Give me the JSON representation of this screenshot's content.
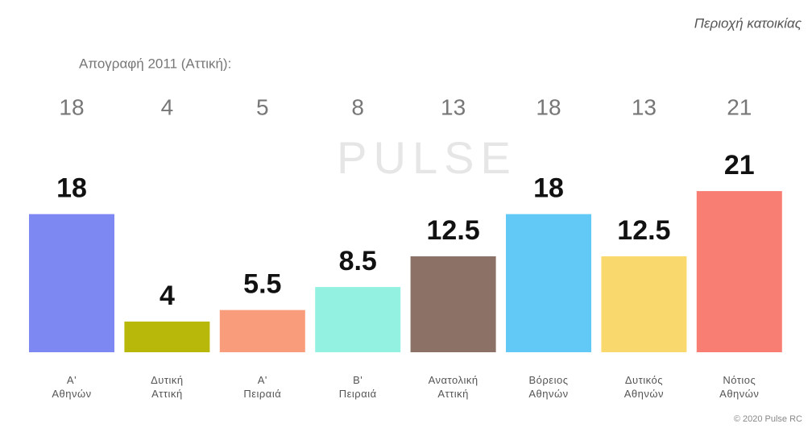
{
  "chart_data": {
    "type": "bar",
    "title": "Περιοχή κατοικίας",
    "watermark": "PULSE",
    "footer": "© 2020 Pulse RC",
    "categories": [
      "Α'\nΑθηνών",
      "Δυτική\nΑττική",
      "Α'\nΠειραιά",
      "Β'\nΠειραιά",
      "Ανατολική\nΑττική",
      "Βόρειος\nΑθηνών",
      "Δυτικός\nΑθηνών",
      "Νότιος\nΑθηνών"
    ],
    "values": [
      18,
      4,
      5.5,
      8.5,
      12.5,
      18,
      12.5,
      21
    ],
    "colors": [
      "#7d88f2",
      "#b8b80a",
      "#f89c7b",
      "#93f1e2",
      "#8c7166",
      "#62c9f6",
      "#f9d86e",
      "#f87d72"
    ],
    "census": {
      "label": "Απογραφή 2011 (Αττική):",
      "values": [
        18,
        4,
        5,
        8,
        13,
        18,
        13,
        21
      ]
    }
  }
}
